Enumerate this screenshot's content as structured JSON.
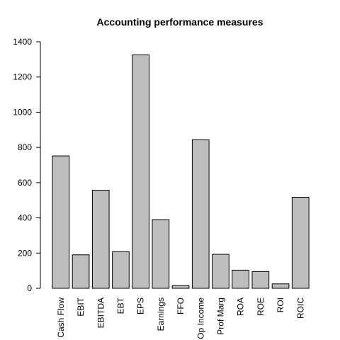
{
  "chart_data": {
    "type": "bar",
    "title": "Accounting performance measures",
    "xlabel": "",
    "ylabel": "",
    "categories": [
      "Cash Flow",
      "EBIT",
      "EBITDA",
      "EBT",
      "EPS",
      "Earnings",
      "FFO",
      "Op Income",
      "Prof Marg",
      "ROA",
      "ROE",
      "ROI",
      "ROIC"
    ],
    "values": [
      752,
      190,
      557,
      208,
      1326,
      390,
      15,
      844,
      193,
      103,
      95,
      25,
      517
    ],
    "ylim": [
      0,
      1400
    ],
    "yticks": [
      0,
      200,
      400,
      600,
      800,
      1000,
      1200,
      1400
    ],
    "bar_color": "#bebebe",
    "grid": false,
    "legend": "none"
  }
}
